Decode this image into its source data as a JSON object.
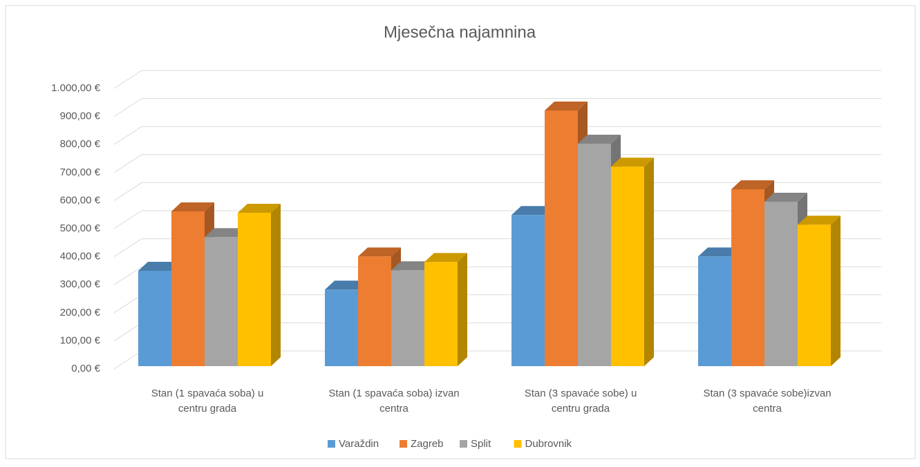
{
  "chart_data": {
    "type": "bar3d",
    "title": "Mjesečna najamnina",
    "categories": [
      "Stan (1 spavaća soba) u centru grada",
      "Stan (1 spavaća soba) izvan centra",
      "Stan (3 spavaće sobe) u centru grada",
      "Stan (3 spavaće sobe)izvan centra"
    ],
    "series": [
      {
        "name": "Varaždin",
        "color": "#5b9bd5",
        "values": [
          345,
          277,
          547,
          397
        ]
      },
      {
        "name": "Zagreb",
        "color": "#ed7d31",
        "values": [
          560,
          397,
          925,
          640
        ]
      },
      {
        "name": "Split",
        "color": "#a5a5a5",
        "values": [
          467,
          347,
          805,
          595
        ]
      },
      {
        "name": "Dubrovnik",
        "color": "#ffc000",
        "values": [
          555,
          377,
          722,
          512
        ]
      }
    ],
    "ylim": [
      0,
      1000
    ],
    "yticks": [
      {
        "value": 0,
        "label": "0,00 €"
      },
      {
        "value": 100,
        "label": "100,00 €"
      },
      {
        "value": 200,
        "label": "200,00 €"
      },
      {
        "value": 300,
        "label": "300,00 €"
      },
      {
        "value": 400,
        "label": "400,00 €"
      },
      {
        "value": 500,
        "label": "500,00 €"
      },
      {
        "value": 600,
        "label": "600,00 €"
      },
      {
        "value": 700,
        "label": "700,00 €"
      },
      {
        "value": 800,
        "label": "800,00 €"
      },
      {
        "value": 900,
        "label": "900,00 €"
      },
      {
        "value": 1000,
        "label": "1.000,00 €"
      }
    ],
    "grid": true,
    "legend": "bottom"
  }
}
